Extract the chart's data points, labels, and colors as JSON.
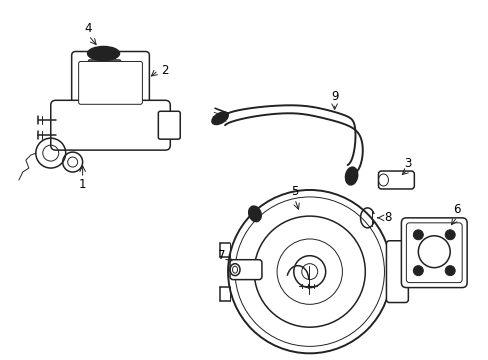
{
  "bg_color": "#ffffff",
  "line_color": "#222222",
  "label_color": "#000000",
  "label_fs": 8.5,
  "lw_main": 1.1,
  "lw_thin": 0.7
}
